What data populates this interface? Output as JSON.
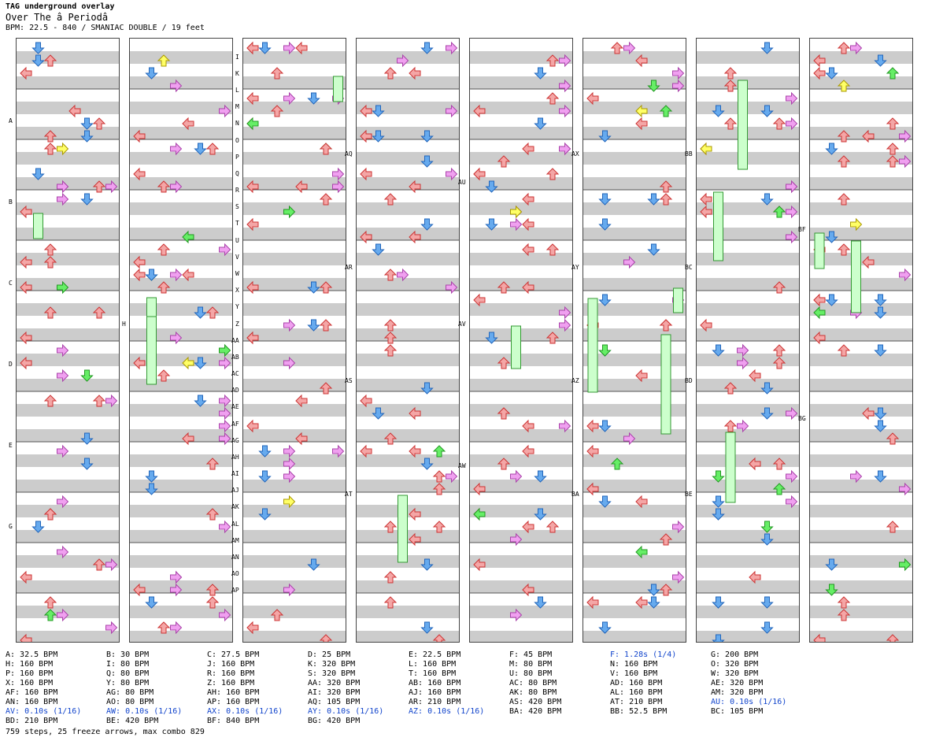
{
  "header": {
    "title": "TAG underground overlay",
    "song": "Over The â  Periodâ",
    "info": "BPM: 22.5 - 840 / SMANIAC DOUBLE / 19 feet"
  },
  "colors": {
    "left": "#f4a6a6",
    "down": "#66aaee",
    "up": "#f4a6a6",
    "right": "#f0a0f0",
    "freeze": "#ccffcc",
    "mine": "#ffff66",
    "green": "#66ee66"
  },
  "legend": [
    [
      "A: 32.5 BPM",
      "H: 160 BPM",
      "P: 160 BPM",
      "X: 160 BPM",
      "AF: 160 BPM",
      "AN: 160 BPM",
      "AV: 0.10s (1/16)",
      "BD: 210 BPM"
    ],
    [
      "B: 30 BPM",
      "I: 80 BPM",
      "Q: 80 BPM",
      "Y: 80 BPM",
      "AG: 80 BPM",
      "AO: 80 BPM",
      "AW: 0.10s (1/16)",
      "BE: 420 BPM"
    ],
    [
      "C: 27.5 BPM",
      "J: 160 BPM",
      "R: 160 BPM",
      "Z: 160 BPM",
      "AH: 160 BPM",
      "AP: 160 BPM",
      "AX: 0.10s (1/16)",
      "BF: 840 BPM"
    ],
    [
      "D: 25 BPM",
      "K: 320 BPM",
      "S: 320 BPM",
      "AA: 320 BPM",
      "AI: 320 BPM",
      "AQ: 105 BPM",
      "AY: 0.10s (1/16)",
      "BG: 420 BPM"
    ],
    [
      "E: 22.5 BPM",
      "L: 160 BPM",
      "T: 160 BPM",
      "AB: 160 BPM",
      "AJ: 160 BPM",
      "AR: 210 BPM",
      "AZ: 0.10s (1/16)"
    ],
    [
      "F: 45 BPM",
      "M: 80 BPM",
      "U: 80 BPM",
      "AC: 80 BPM",
      "AK: 80 BPM",
      "AS: 420 BPM",
      "BA: 420 BPM"
    ],
    [
      "F: 1.28s (1/4)",
      "N: 160 BPM",
      "V: 160 BPM",
      "AD: 160 BPM",
      "AL: 160 BPM",
      "AT: 210 BPM",
      "BB: 52.5 BPM"
    ],
    [
      "G: 200 BPM",
      "O: 320 BPM",
      "W: 320 BPM",
      "AE: 320 BPM",
      "AM: 320 BPM",
      "AU: 0.10s (1/16)",
      "BC: 105 BPM"
    ]
  ],
  "legend_blue": [
    "AV: 0.10s (1/16)",
    "AW: 0.10s (1/16)",
    "AX: 0.10s (1/16)",
    "AY: 0.10s (1/16)",
    "AZ: 0.10s (1/16)",
    "F: 1.28s (1/4)",
    "AU: 0.10s (1/16)"
  ],
  "footer": "759 steps, 25 freeze arrows, max combo 829",
  "marker_labels": {
    "col1": [
      "A",
      "B",
      "C",
      "D",
      "E",
      "G"
    ],
    "col2": [
      "H"
    ],
    "col3": [
      "I",
      "K",
      "L",
      "M",
      "N",
      "O",
      "P",
      "Q",
      "R",
      "S",
      "T",
      "U",
      "V",
      "W",
      "X",
      "Y",
      "Z",
      "AA",
      "AB",
      "AC",
      "AD",
      "AE",
      "AF",
      "AG",
      "AH",
      "AI",
      "AJ",
      "AK",
      "AL",
      "AM",
      "AN",
      "AO",
      "AP"
    ],
    "col4": [
      "AQ",
      "AR",
      "AS",
      "AT"
    ],
    "col5": [
      "AU",
      "AV",
      "AW"
    ],
    "col6": [
      "AX",
      "AY",
      "AZ",
      "BA"
    ],
    "col7": [
      "BB",
      "BC",
      "BD",
      "BE"
    ],
    "col8": [
      "BF",
      "BG"
    ]
  }
}
